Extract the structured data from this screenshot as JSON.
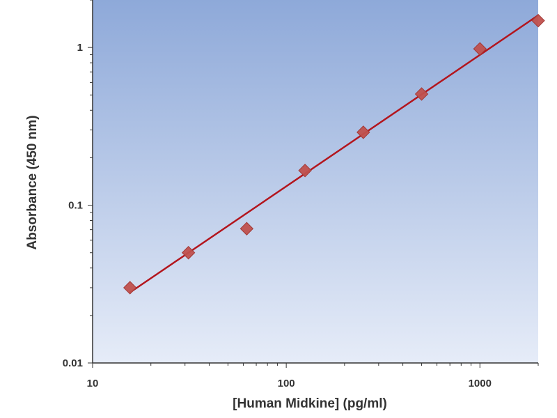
{
  "chart_data": {
    "type": "scatter",
    "title": "",
    "xlabel": "[Human Midkine] (pg/ml)",
    "ylabel": "Absorbance (450 nm)",
    "x_scale": "log",
    "y_scale": "log",
    "xlim": [
      10,
      2000
    ],
    "ylim": [
      0.01,
      2
    ],
    "x_ticks": [
      10,
      100,
      1000
    ],
    "x_tick_labels": [
      "10",
      "100",
      "1000"
    ],
    "y_ticks": [
      0.01,
      0.1,
      1
    ],
    "y_tick_labels": [
      "0.01",
      "0.1",
      "1"
    ],
    "grid": false,
    "legend": "none",
    "series": [
      {
        "marker": "diamond",
        "x": [
          15.6,
          31.25,
          62.5,
          125,
          250,
          500,
          1000,
          2000
        ],
        "y": [
          0.03,
          0.05,
          0.071,
          0.166,
          0.29,
          0.507,
          0.98,
          1.48
        ]
      }
    ],
    "fit_line": {
      "x": [
        15.6,
        2000
      ],
      "y": [
        0.028,
        1.6
      ]
    },
    "colors": {
      "marker": "#c0504d",
      "marker_edge": "#a33a37",
      "line": "#b3151d",
      "background_top": "#8ea9d9",
      "background_bottom": "#e6ecf8",
      "axis": "#333333"
    }
  }
}
